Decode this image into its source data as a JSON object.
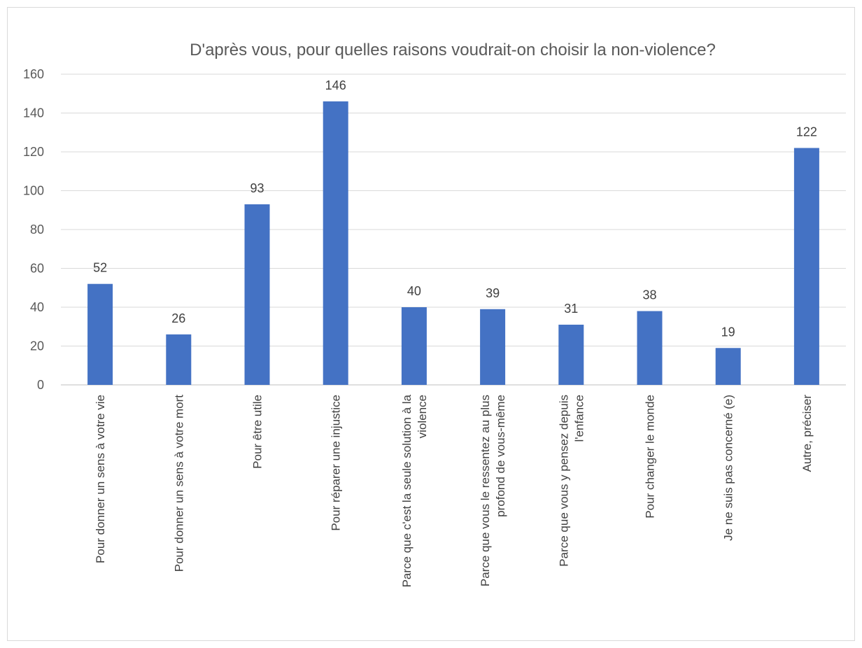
{
  "chart_data": {
    "type": "bar",
    "title": "D'après vous, pour quelles raisons voudrait-on choisir la non-violence?",
    "xlabel": "",
    "ylabel": "",
    "ylim": [
      0,
      160
    ],
    "yticks": [
      0,
      20,
      40,
      60,
      80,
      100,
      120,
      140,
      160
    ],
    "grid": true,
    "bar_color": "#4472c4",
    "categories": [
      [
        "Pour donner un sens à votre vie"
      ],
      [
        "Pour donner un sens à votre mort"
      ],
      [
        "Pour être utile"
      ],
      [
        "Pour réparer une injustice"
      ],
      [
        "Parce que c'est la seule solution à la",
        "violence"
      ],
      [
        "Parce que vous le ressentez au plus",
        "profond de vous-même"
      ],
      [
        "Parce que vous y pensez depuis",
        "l'enfance"
      ],
      [
        "Pour changer le monde"
      ],
      [
        "Je ne suis pas concerné (e)"
      ],
      [
        "Autre, préciser"
      ]
    ],
    "values": [
      52,
      26,
      93,
      146,
      40,
      39,
      31,
      38,
      19,
      122
    ]
  }
}
